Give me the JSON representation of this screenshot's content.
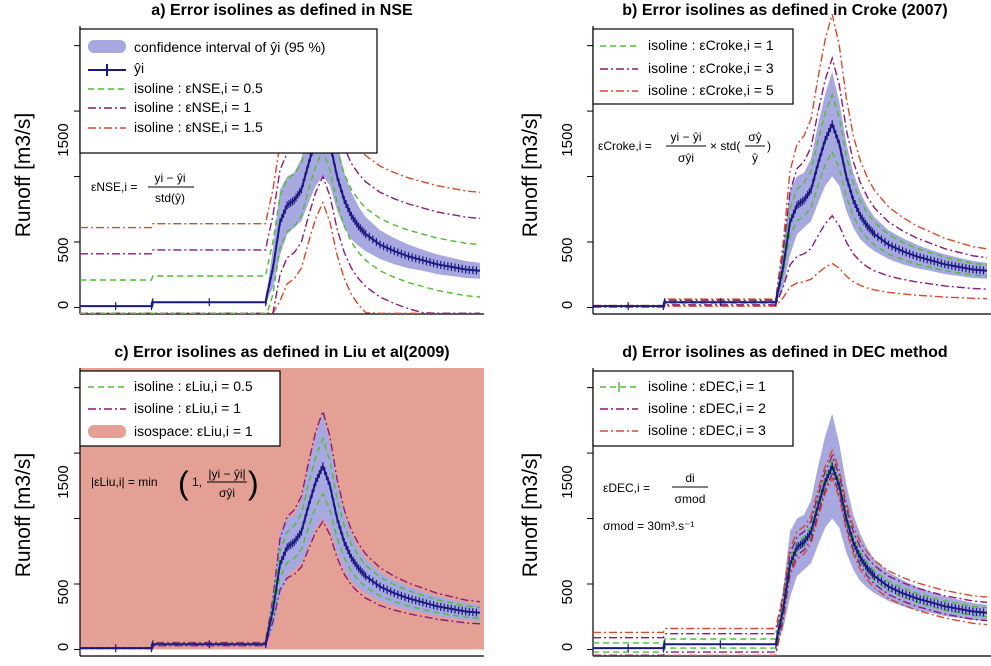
{
  "colors": {
    "band": "#a7a8e0",
    "fitted": "#1a1a80",
    "green": "#4cc02c",
    "purple": "#8a1a7c",
    "red": "#d84a28",
    "liu_space": "#e4a094"
  },
  "chart_data": [
    {
      "type": "line",
      "title": "a) Error isolines as defined in NSE",
      "ylabel": "Runoff [m3/s]",
      "ylim": [
        -50,
        2150
      ],
      "yticks": [
        "0",
        "500",
        "1500"
      ],
      "legend": [
        {
          "label": "confidence interval of ŷi (95 %)",
          "style": "band",
          "color": "#a7a8e0"
        },
        {
          "label": "ŷi",
          "style": "cross",
          "color": "#1a1a80"
        },
        {
          "label": "isoline : εNSE,i = 0.5",
          "style": "dash",
          "color": "#4cc02c"
        },
        {
          "label": "isoline : εNSE,i = 1",
          "style": "dashdot",
          "color": "#8a1a7c"
        },
        {
          "label": "isoline : εNSE,i = 1.5",
          "style": "dashdot",
          "color": "#d84a28"
        }
      ],
      "formula": [
        "εNSE,i =",
        "yi − ŷi",
        "std(ŷ)"
      ],
      "series": [
        {
          "name": "isoline : εNSE,i = 1.5",
          "offsets": [
            600,
            -600
          ]
        },
        {
          "name": "isoline : εNSE,i = 1",
          "offsets": [
            400,
            -400
          ]
        },
        {
          "name": "isoline : εNSE,i = 0.5",
          "offsets": [
            200,
            -200
          ]
        }
      ]
    },
    {
      "type": "line",
      "title": "b) Error isolines as defined in Croke (2007)",
      "ylabel": "Runoff [m3/s]",
      "ylim": [
        -50,
        2150
      ],
      "yticks": [
        "0",
        "500",
        "1500"
      ],
      "legend": [
        {
          "label": "isoline : εCroke,i = 1",
          "style": "dash",
          "color": "#4cc02c"
        },
        {
          "label": "isoline : εCroke,i = 3",
          "style": "dashdot",
          "color": "#8a1a7c"
        },
        {
          "label": "isoline : εCroke,i = 5",
          "style": "dashdot",
          "color": "#d84a28"
        }
      ],
      "formula": [
        "εCroke,i =",
        "yi − ŷi",
        "σŷi",
        "× std(",
        "σŷ",
        "ŷ",
        ")"
      ],
      "series": [
        {
          "name": "isoline : εCroke,i = 5",
          "factors": [
            1.6,
            0.24
          ]
        },
        {
          "name": "isoline : εCroke,i = 3",
          "factors": [
            1.36,
            0.5
          ]
        },
        {
          "name": "isoline : εCroke,i = 1",
          "factors": [
            1.16,
            0.85
          ]
        }
      ]
    },
    {
      "type": "line",
      "title": "c) Error isolines as defined in Liu et al(2009)",
      "ylabel": "Runoff [m3/s]",
      "ylim": [
        -50,
        2150
      ],
      "yticks": [
        "0",
        "500",
        "1500"
      ],
      "legend": [
        {
          "label": "isoline : εLiu,i = 0.5",
          "style": "dash",
          "color": "#4cc02c"
        },
        {
          "label": "isoline : εLiu,i = 1",
          "style": "dashdot",
          "color": "#8a1a7c"
        },
        {
          "label": "isospace: εLiu,i = 1",
          "style": "band",
          "color": "#e4a094"
        }
      ],
      "formula": [
        "|εLiu,i| = min",
        "1,",
        "|yi − ŷi|",
        "σŷi"
      ],
      "series": [
        {
          "name": "isoline : εLiu,i = 1",
          "factors": [
            1.3,
            0.7
          ]
        },
        {
          "name": "isoline : εLiu,i = 0.5",
          "factors": [
            1.15,
            0.85
          ]
        }
      ]
    },
    {
      "type": "line",
      "title": "d) Error isolines as defined in DEC method",
      "ylabel": "Runoff [m3/s]",
      "ylim": [
        -50,
        2150
      ],
      "yticks": [
        "0",
        "500",
        "1500"
      ],
      "legend": [
        {
          "label": "isoline : εDEC,i = 1",
          "style": "dashcross",
          "color": "#4cc02c"
        },
        {
          "label": "isoline : εDEC,i = 2",
          "style": "dashdot",
          "color": "#8a1a7c"
        },
        {
          "label": "isoline : εDEC,i = 3",
          "style": "dashdot",
          "color": "#d84a28"
        }
      ],
      "formula": [
        "εDEC,i =",
        "di",
        "σmod",
        "σmod = 30m³.s⁻¹"
      ],
      "series": [
        {
          "name": "isoline : εDEC,i = 3",
          "offsets": [
            120,
            -90
          ]
        },
        {
          "name": "isoline : εDEC,i = 2",
          "offsets": [
            80,
            -60
          ]
        },
        {
          "name": "isoline : εDEC,i = 1",
          "offsets": [
            40,
            -30
          ]
        }
      ]
    }
  ],
  "hydrograph": {
    "note": "fitted runoff ŷi vs time step (no x tick labels printed)",
    "x": [
      0,
      50,
      51,
      130,
      131,
      135,
      140,
      145,
      150,
      155,
      160,
      165,
      170,
      175,
      180,
      185,
      190,
      195,
      200,
      210,
      220,
      230,
      240,
      250,
      260,
      270,
      280
    ],
    "y": [
      10,
      10,
      40,
      40,
      100,
      300,
      650,
      780,
      820,
      900,
      1100,
      1280,
      1400,
      1250,
      1000,
      820,
      700,
      620,
      560,
      480,
      430,
      390,
      360,
      330,
      310,
      290,
      280
    ],
    "band_half_width": [
      0,
      0,
      0,
      0,
      40,
      150,
      250,
      220,
      210,
      240,
      300,
      350,
      400,
      320,
      260,
      210,
      180,
      150,
      130,
      110,
      100,
      90,
      80,
      75,
      70,
      65,
      60
    ]
  }
}
